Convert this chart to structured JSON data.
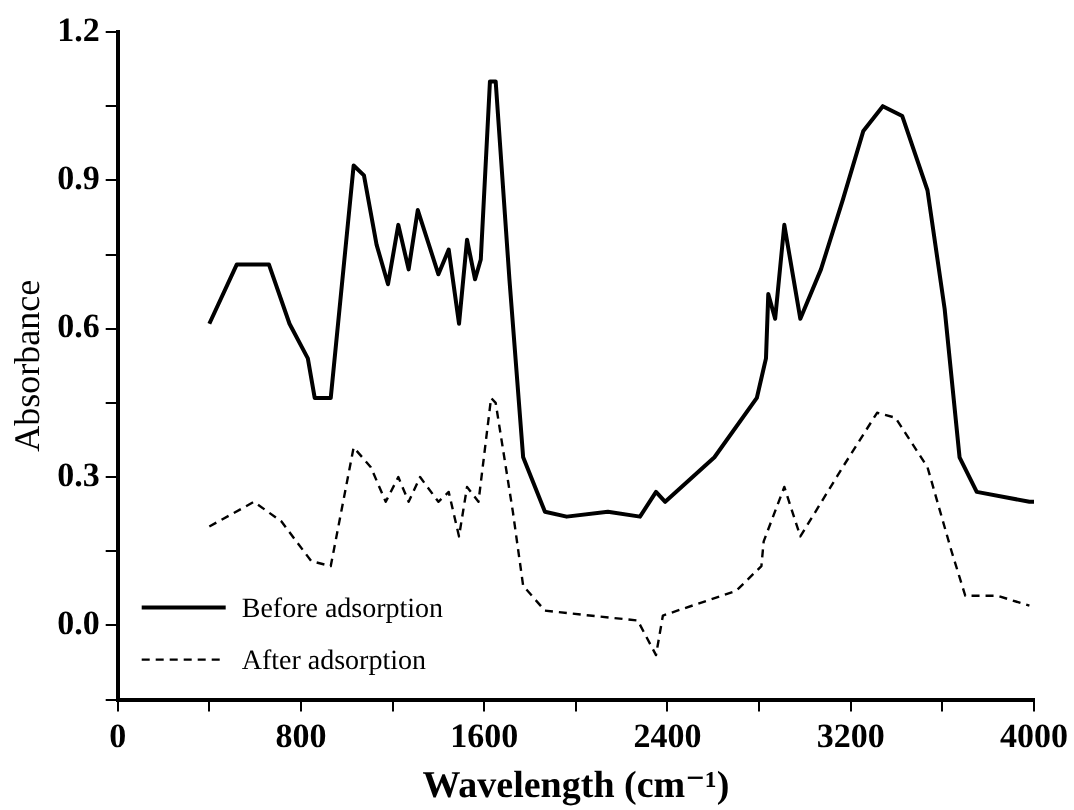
{
  "chart_data": {
    "type": "line",
    "xlabel": "Wavelength (cm⁻¹)",
    "ylabel": "Absorbance",
    "xlim": [
      0,
      4000
    ],
    "xticks": [
      0,
      {
        "value": 400,
        "label": null
      },
      800,
      {
        "value": 1200,
        "label": null
      },
      1600,
      {
        "value": 2000,
        "label": null
      },
      2400,
      {
        "value": 2800,
        "label": null
      },
      3200,
      {
        "value": 3600,
        "label": null
      },
      4000
    ],
    "ylim": [
      -0.15,
      1.2
    ],
    "yticks": [
      {
        "value": -0.15,
        "label": null
      },
      {
        "value": 0,
        "label": "0.0"
      },
      {
        "value": 0.15,
        "label": null
      },
      0.3,
      {
        "value": 0.45,
        "label": null
      },
      0.6,
      {
        "value": 0.75,
        "label": null
      },
      0.9,
      {
        "value": 1.05,
        "label": null
      },
      1.2
    ],
    "grid": false,
    "legend": "bottom left",
    "marker": "none",
    "series": [
      {
        "name": "Before adsorption",
        "color": "#000000",
        "line_style": "solid",
        "x": [
          400,
          520,
          660,
          750,
          830,
          860,
          930,
          1030,
          1075,
          1130,
          1180,
          1225,
          1270,
          1310,
          1400,
          1445,
          1490,
          1525,
          1560,
          1585,
          1625,
          1650,
          1710,
          1770,
          1865,
          1960,
          2140,
          2280,
          2350,
          2390,
          2605,
          2790,
          2830,
          2840,
          2870,
          2910,
          2980,
          3070,
          3165,
          3255,
          3340,
          3425,
          3535,
          3610,
          3675,
          3750,
          3980,
          4000
        ],
        "values": [
          0.61,
          0.73,
          0.73,
          0.61,
          0.54,
          0.46,
          0.46,
          0.93,
          0.91,
          0.77,
          0.69,
          0.81,
          0.72,
          0.84,
          0.71,
          0.76,
          0.61,
          0.78,
          0.7,
          0.74,
          1.1,
          1.1,
          0.7,
          0.34,
          0.23,
          0.22,
          0.23,
          0.22,
          0.27,
          0.25,
          0.34,
          0.46,
          0.54,
          0.67,
          0.62,
          0.81,
          0.62,
          0.72,
          0.86,
          1.0,
          1.05,
          1.03,
          0.88,
          0.64,
          0.34,
          0.27,
          0.25,
          0.25
        ]
      },
      {
        "name": "After adsorption",
        "color": "#000000",
        "line_style": "dashed",
        "x": [
          400,
          595,
          715,
          845,
          930,
          1030,
          1105,
          1170,
          1225,
          1270,
          1320,
          1400,
          1445,
          1490,
          1525,
          1575,
          1630,
          1650,
          1725,
          1770,
          1865,
          2060,
          2270,
          2350,
          2380,
          2700,
          2810,
          2820,
          2910,
          2980,
          3165,
          3315,
          3395,
          3535,
          3640,
          3700,
          3840,
          3980
        ],
        "values": [
          0.2,
          0.25,
          0.21,
          0.13,
          0.12,
          0.36,
          0.32,
          0.25,
          0.3,
          0.25,
          0.3,
          0.25,
          0.27,
          0.18,
          0.28,
          0.25,
          0.46,
          0.45,
          0.23,
          0.08,
          0.03,
          0.02,
          0.01,
          -0.06,
          0.02,
          0.07,
          0.12,
          0.17,
          0.28,
          0.18,
          0.32,
          0.43,
          0.42,
          0.32,
          0.15,
          0.06,
          0.06,
          0.04
        ]
      }
    ]
  }
}
